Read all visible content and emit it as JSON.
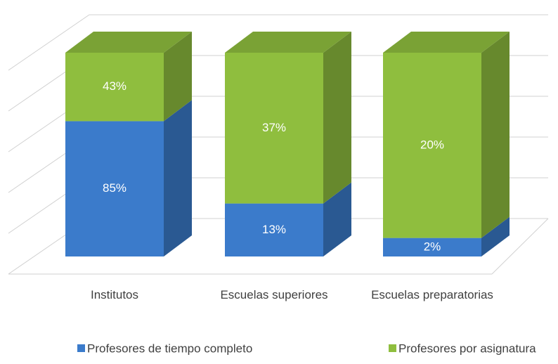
{
  "chart_data": {
    "type": "bar",
    "stack": "percent",
    "categories": [
      "Institutos",
      "Escuelas superiores",
      "Escuelas preparatorias"
    ],
    "series": [
      {
        "name": "Profesores de tiempo completo",
        "color": "#3b7bcb",
        "values": [
          85,
          13,
          2
        ],
        "value_labels": [
          "85%",
          "13%",
          "2%"
        ]
      },
      {
        "name": "Profesores por asignatura",
        "color": "#8fbe3e",
        "values": [
          43,
          37,
          20
        ],
        "value_labels": [
          "43%",
          "37%",
          "20%"
        ]
      }
    ],
    "ylim": [
      0,
      100
    ],
    "yticks": [
      0,
      20,
      40,
      60,
      80,
      100
    ],
    "grid": true
  }
}
